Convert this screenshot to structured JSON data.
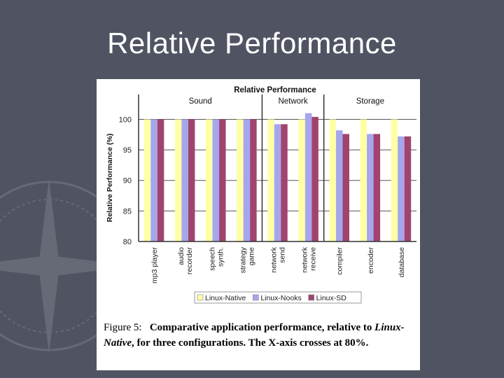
{
  "slide": {
    "title": "Relative Performance"
  },
  "caption": {
    "label": "Figure 5:",
    "text_1": "Comparative application performance, relative to",
    "emph": "Linux-Native",
    "text_2": ", for three configurations. The X-axis crosses at 80%."
  },
  "chart_data": {
    "type": "bar",
    "title": "Relative Performance",
    "xlabel": "",
    "ylabel": "Relative Performance (%)",
    "ylim": [
      80,
      102
    ],
    "yticks": [
      80,
      85,
      90,
      95,
      100
    ],
    "grid": true,
    "legend_position": "bottom",
    "groups": [
      {
        "name": "Sound",
        "categories": [
          "mp3 player",
          "audio recorder",
          "speech synth.",
          "strategy game"
        ]
      },
      {
        "name": "Network",
        "categories": [
          "network send",
          "network receive"
        ]
      },
      {
        "name": "Storage",
        "categories": [
          "compiler",
          "encoder",
          "database"
        ]
      }
    ],
    "categories": [
      "mp3 player",
      "audio recorder",
      "speech synth.",
      "strategy game",
      "network send",
      "network receive",
      "compiler",
      "encoder",
      "database"
    ],
    "category_lines": [
      [
        "mp3 player"
      ],
      [
        "audio",
        "recorder"
      ],
      [
        "speech",
        "synth."
      ],
      [
        "strategy",
        "game"
      ],
      [
        "network",
        "send"
      ],
      [
        "network",
        "receive"
      ],
      [
        "compiler"
      ],
      [
        "encoder"
      ],
      [
        "database"
      ]
    ],
    "series": [
      {
        "name": "Linux-Native",
        "color": "#ffffa6",
        "values": [
          100,
          100,
          100,
          100,
          100,
          100,
          100,
          100,
          100
        ]
      },
      {
        "name": "Linux-Nooks",
        "color": "#a6a6ee",
        "values": [
          100,
          100,
          100,
          100,
          99.2,
          101,
          98.2,
          97.6,
          97.2
        ]
      },
      {
        "name": "Linux-SD",
        "color": "#a0446e",
        "values": [
          100,
          100,
          100,
          100,
          99.2,
          100.4,
          97.6,
          97.6,
          97.2
        ]
      }
    ]
  }
}
